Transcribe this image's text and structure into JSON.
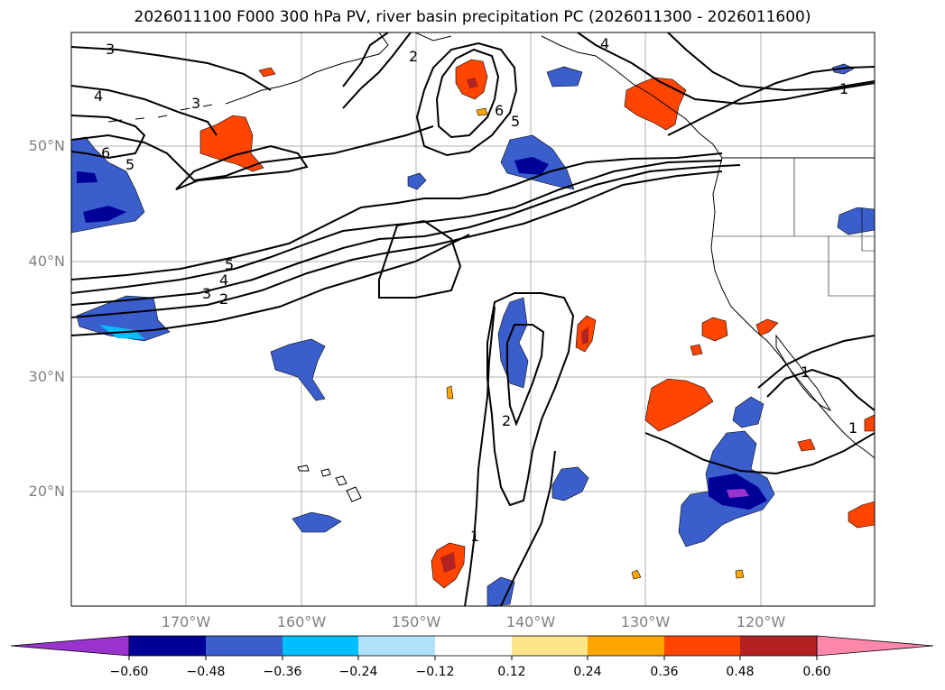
{
  "title": "2026011100 F000 300 hPa PV, river basin precipitation PC (2026011300 - 2026011600)",
  "lat_labels": [
    "50°N",
    "40°N",
    "30°N",
    "20°N"
  ],
  "lon_labels": [
    "170°W",
    "160°W",
    "150°W",
    "140°W",
    "130°W",
    "120°W"
  ],
  "contour_labels": [
    "3",
    "4",
    "6",
    "5",
    "3",
    "2",
    "6",
    "5",
    "4",
    "1",
    "5",
    "4",
    "3",
    "2",
    "2",
    "1",
    "1",
    "1"
  ],
  "colorbar": {
    "ticks": [
      "−0.60",
      "−0.48",
      "−0.36",
      "−0.24",
      "−0.12",
      "0.12",
      "0.24",
      "0.36",
      "0.48",
      "0.60"
    ],
    "colors": [
      "#9933cc",
      "#000099",
      "#3a5fcd",
      "#00bfff",
      "#aee2fa",
      "#ffffff",
      "#fde68a",
      "#ffa500",
      "#ff4500",
      "#b22222",
      "#ff88aa"
    ]
  },
  "legend_colors": {
    "pv_contour": "#000000",
    "coast": "#000000",
    "grid": "#b0b0b0"
  }
}
